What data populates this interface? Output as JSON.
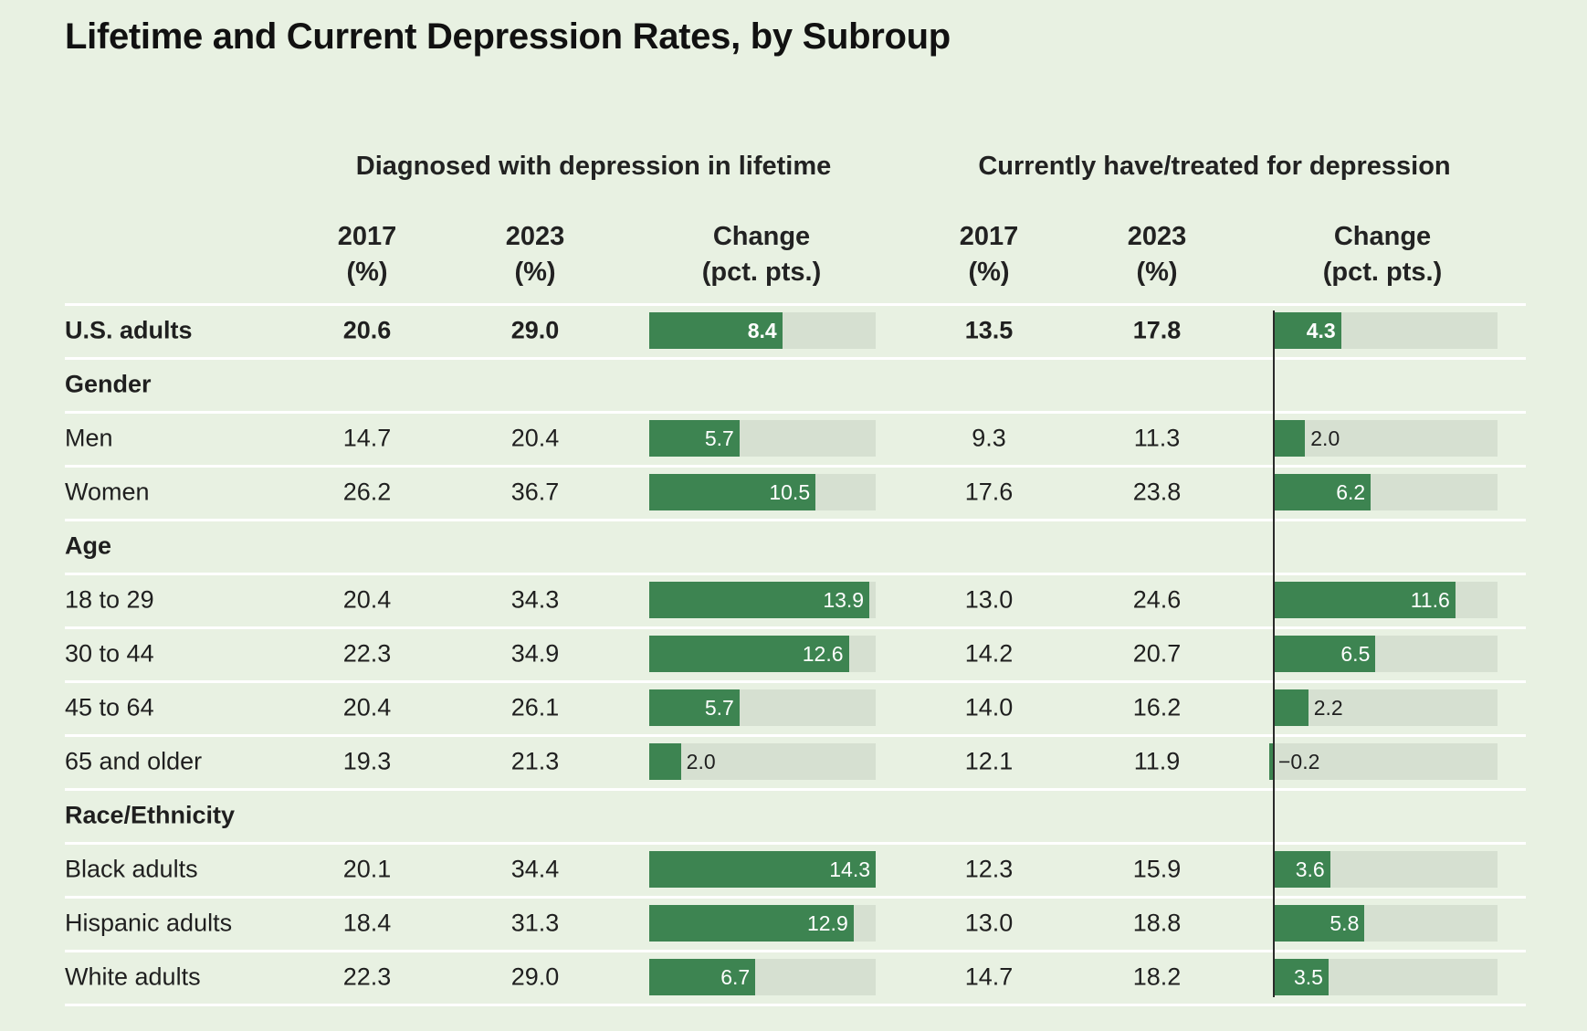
{
  "title": "Lifetime and Current Depression Rates, by Subroup",
  "groups": {
    "lifetime": "Diagnosed with depression in lifetime",
    "current": "Currently have/treated for depression"
  },
  "columns": {
    "y2017": [
      "2017",
      "(%)"
    ],
    "y2023": [
      "2023",
      "(%)"
    ],
    "change": [
      "Change",
      "(pct. pts.)"
    ]
  },
  "colors": {
    "background": "#e8f1e2",
    "bar": "#3d8451",
    "track": "#d6e0d1",
    "rule": "#ffffff"
  },
  "chart_data": {
    "type": "table",
    "title": "Lifetime and Current Depression Rates, by Subroup",
    "rows": [
      {
        "kind": "total",
        "label": "U.S. adults",
        "lifetime": [
          "20.6",
          "29.0",
          "8.4"
        ],
        "current": [
          "13.5",
          "17.8",
          "4.3"
        ]
      },
      {
        "kind": "section",
        "label": "Gender"
      },
      {
        "kind": "data",
        "label": "Men",
        "lifetime": [
          "14.7",
          "20.4",
          "5.7"
        ],
        "current": [
          "9.3",
          "11.3",
          "2.0"
        ]
      },
      {
        "kind": "data",
        "label": "Women",
        "lifetime": [
          "26.2",
          "36.7",
          "10.5"
        ],
        "current": [
          "17.6",
          "23.8",
          "6.2"
        ]
      },
      {
        "kind": "section",
        "label": "Age"
      },
      {
        "kind": "data",
        "label": "18 to 29",
        "lifetime": [
          "20.4",
          "34.3",
          "13.9"
        ],
        "current": [
          "13.0",
          "24.6",
          "11.6"
        ]
      },
      {
        "kind": "data",
        "label": "30 to 44",
        "lifetime": [
          "22.3",
          "34.9",
          "12.6"
        ],
        "current": [
          "14.2",
          "20.7",
          "6.5"
        ]
      },
      {
        "kind": "data",
        "label": "45 to 64",
        "lifetime": [
          "20.4",
          "26.1",
          "5.7"
        ],
        "current": [
          "14.0",
          "16.2",
          "2.2"
        ]
      },
      {
        "kind": "data",
        "label": "65 and older",
        "lifetime": [
          "19.3",
          "21.3",
          "2.0"
        ],
        "current": [
          "12.1",
          "11.9",
          "−0.2"
        ]
      },
      {
        "kind": "section",
        "label": "Race/Ethnicity"
      },
      {
        "kind": "data",
        "label": "Black adults",
        "lifetime": [
          "20.1",
          "34.4",
          "14.3"
        ],
        "current": [
          "12.3",
          "15.9",
          "3.6"
        ]
      },
      {
        "kind": "data",
        "label": "Hispanic adults",
        "lifetime": [
          "18.4",
          "31.3",
          "12.9"
        ],
        "current": [
          "13.0",
          "18.8",
          "5.8"
        ]
      },
      {
        "kind": "data",
        "label": "White adults",
        "lifetime": [
          "22.3",
          "29.0",
          "6.7"
        ],
        "current": [
          "14.7",
          "18.2",
          "3.5"
        ]
      }
    ],
    "lifetime_change_range": [
      0,
      14.3
    ],
    "current_change_range": [
      -0.2,
      14.3
    ]
  }
}
